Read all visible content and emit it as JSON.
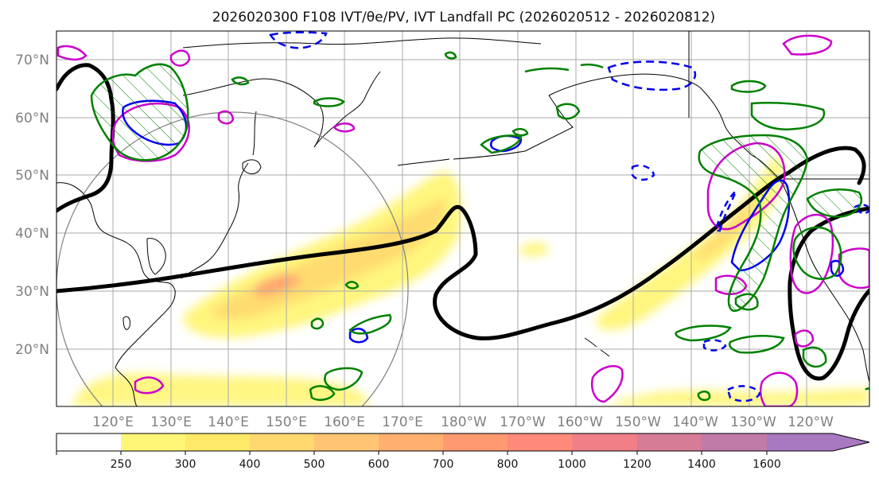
{
  "title": "2026020300 F108 IVT/θe/PV, IVT Landfall PC (2026020512 - 2026020812)",
  "map": {
    "lat_labels": [
      "70°N",
      "60°N",
      "50°N",
      "40°N",
      "30°N",
      "20°N"
    ],
    "lon_labels": [
      "120°E",
      "130°E",
      "140°E",
      "150°E",
      "160°E",
      "170°E",
      "180°W",
      "170°W",
      "160°W",
      "150°W",
      "140°W",
      "130°W",
      "120°W"
    ],
    "extent": {
      "lon_min": 112,
      "lon_max": 254,
      "lat_min": 10,
      "lat_max": 75
    },
    "contour_colors": {
      "pv": "#000000",
      "theta_e_warm": "#cc00cc",
      "theta_e_cold": "#0000ee",
      "landfall": "#008000",
      "range_ring": "#808080"
    }
  },
  "colorbar": {
    "labels": [
      "250",
      "300",
      "400",
      "500",
      "600",
      "700",
      "800",
      "1000",
      "1200",
      "1400",
      "1600"
    ],
    "colors": [
      "#ffffff",
      "#fff576",
      "#ffe968",
      "#ffd86f",
      "#ffc575",
      "#ffb070",
      "#ff9a70",
      "#ff8a7a",
      "#f07f88",
      "#d77c97",
      "#c17ba8",
      "#a878c0"
    ]
  }
}
